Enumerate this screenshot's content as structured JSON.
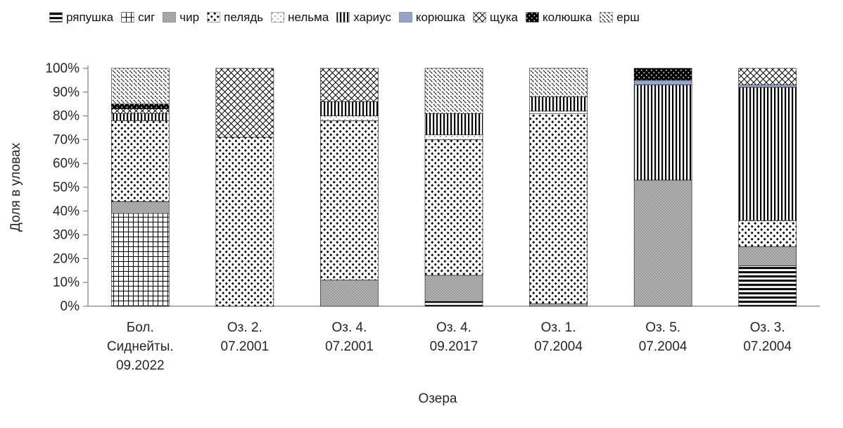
{
  "chart_data": {
    "type": "bar",
    "subtype": "stacked-100-percent",
    "title": "",
    "xlabel": "Озера",
    "ylabel": "Доля в уловах",
    "ylim": [
      0,
      100
    ],
    "ytick_suffix": "%",
    "yticks": [
      0,
      10,
      20,
      30,
      40,
      50,
      60,
      70,
      80,
      90,
      100
    ],
    "legend_position": "top",
    "grid": false,
    "categories": [
      [
        "Бол.",
        "Сиднейты.",
        "09.2022"
      ],
      [
        "Оз. 2.",
        "07.2001"
      ],
      [
        "Оз. 4.",
        "07.2001"
      ],
      [
        "Оз. 4.",
        "09.2017"
      ],
      [
        "Оз. 1.",
        "07.2004"
      ],
      [
        "Оз. 5.",
        "07.2004"
      ],
      [
        "Оз. 3.",
        "07.2004"
      ]
    ],
    "series": [
      {
        "name": "ряпушка",
        "pattern": "hlines",
        "values": [
          0,
          0,
          0,
          2,
          0,
          0,
          17
        ]
      },
      {
        "name": "сиг",
        "pattern": "grid",
        "values": [
          39,
          0,
          0,
          0,
          0,
          0,
          0
        ]
      },
      {
        "name": "чир",
        "pattern": "gray",
        "color_hint": "#a6a6a6",
        "values": [
          5,
          0,
          11,
          11,
          1,
          53,
          8
        ]
      },
      {
        "name": "пелядь",
        "pattern": "diamond-black",
        "values": [
          34,
          71,
          67,
          57,
          80,
          0,
          11
        ]
      },
      {
        "name": "нельма",
        "pattern": "dots-light",
        "values": [
          0,
          0,
          2,
          2,
          1,
          0,
          0
        ]
      },
      {
        "name": "хариус",
        "pattern": "vlines",
        "values": [
          3,
          0,
          6,
          9,
          6,
          40,
          56
        ]
      },
      {
        "name": "корюшка",
        "color": "#95a3cf",
        "values": [
          0,
          0,
          0,
          0,
          0,
          2,
          1
        ]
      },
      {
        "name": "щука",
        "pattern": "crosshatch",
        "values": [
          2,
          29,
          14,
          0,
          0,
          0,
          7
        ]
      },
      {
        "name": "колюшка",
        "pattern": "black-dots",
        "values": [
          2,
          0,
          0,
          0,
          0,
          5,
          0
        ]
      },
      {
        "name": "ерш",
        "pattern": "diag-light",
        "values": [
          15,
          0,
          0,
          19,
          12,
          0,
          0
        ]
      }
    ]
  }
}
